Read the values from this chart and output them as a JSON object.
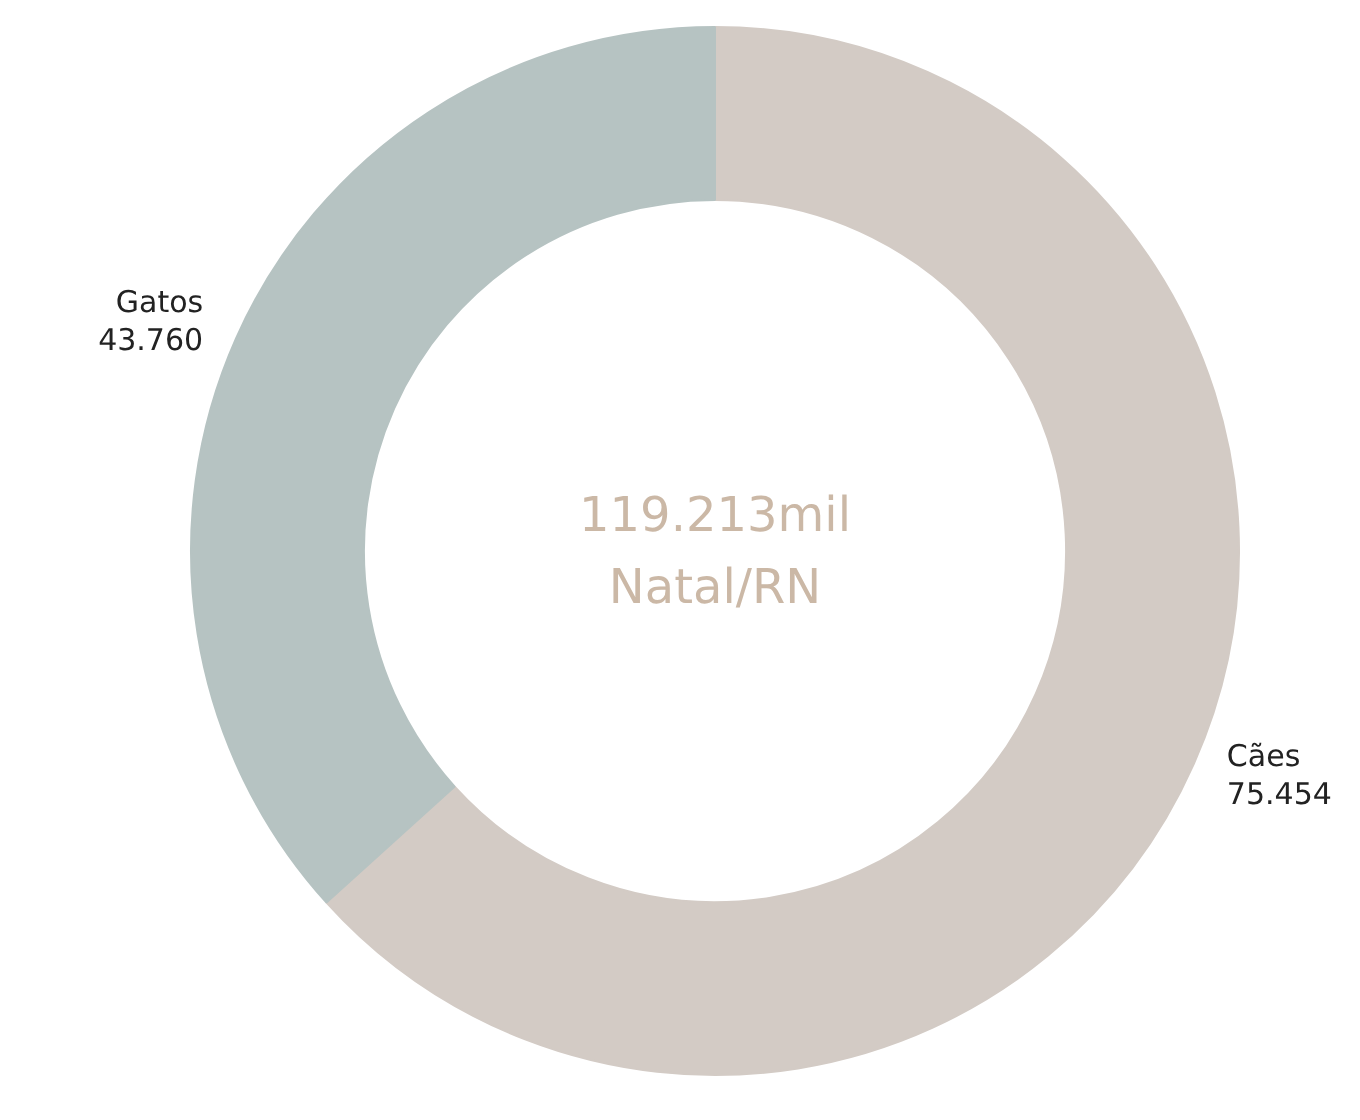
{
  "chart_data": {
    "type": "donut",
    "categories": [
      "Cães",
      "Gatos"
    ],
    "values": [
      75454,
      43760
    ],
    "value_labels": [
      "75.454",
      "43.760"
    ],
    "colors": [
      "#d3cbc5",
      "#b6c3c2"
    ],
    "annotations": [
      "119.213mil",
      "Natal/RN"
    ]
  }
}
